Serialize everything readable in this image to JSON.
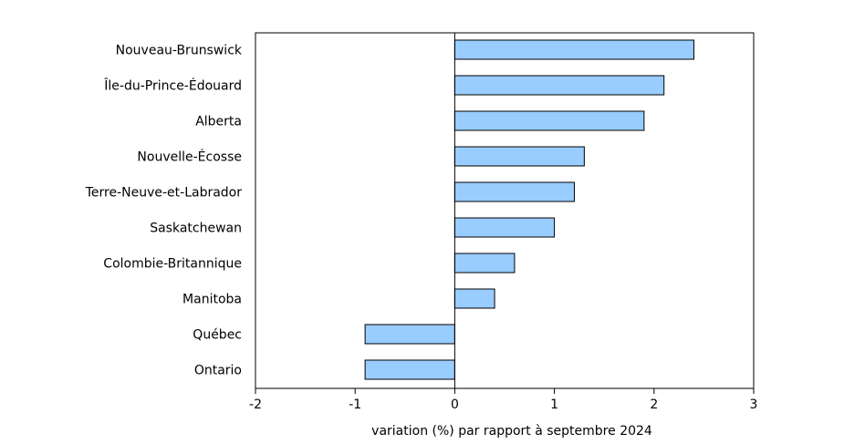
{
  "chart_data": {
    "type": "bar",
    "orientation": "horizontal",
    "title": "",
    "xlabel": "variation (%) par rapport à septembre 2024",
    "ylabel": "",
    "categories": [
      "Nouveau-Brunswick",
      "Île-du-Prince-Édouard",
      "Alberta",
      "Nouvelle-Écosse",
      "Terre-Neuve-et-Labrador",
      "Saskatchewan",
      "Colombie-Britannique",
      "Manitoba",
      "Québec",
      "Ontario"
    ],
    "values": [
      2.4,
      2.1,
      1.9,
      1.3,
      1.2,
      1.0,
      0.6,
      0.4,
      -0.9,
      -0.9
    ],
    "xlim": [
      -2,
      3
    ],
    "xticks": [
      -2,
      -1,
      0,
      1,
      2,
      3
    ],
    "xtick_labels": [
      "-2",
      "-1",
      "0",
      "1",
      "2",
      "3"
    ],
    "grid": false,
    "legend": "none",
    "bar_color": "#99ccff",
    "bar_edge_color": "#000000"
  }
}
